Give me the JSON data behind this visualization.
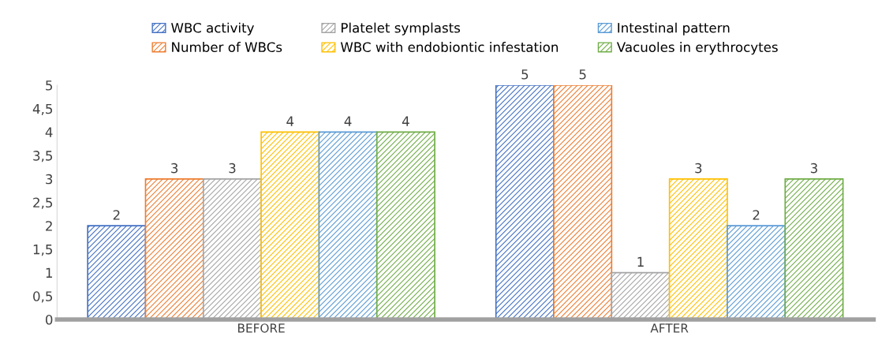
{
  "chart_data": {
    "type": "bar",
    "categories": [
      "BEFORE",
      "AFTER"
    ],
    "series": [
      {
        "name": "WBC activity",
        "color": "#4472c4",
        "values": [
          2,
          5
        ]
      },
      {
        "name": "Number of WBCs",
        "color": "#ed7d31",
        "values": [
          3,
          5
        ]
      },
      {
        "name": "Platelet symplasts",
        "color": "#a5a5a5",
        "values": [
          3,
          1
        ]
      },
      {
        "name": "WBC with endobiontic infestation",
        "color": "#ffc000",
        "values": [
          4,
          3
        ]
      },
      {
        "name": "Intestinal pattern",
        "color": "#5b9bd5",
        "values": [
          4,
          2
        ]
      },
      {
        "name": "Vacuoles in erythrocytes",
        "color": "#70ad47",
        "values": [
          4,
          3
        ]
      }
    ],
    "ylim": [
      0,
      5
    ],
    "yticks": [
      0,
      {
        "value": 0.5,
        "label": "0,5"
      },
      1,
      {
        "value": 1.5,
        "label": "1,5"
      },
      2,
      {
        "value": 2.5,
        "label": "2,5"
      },
      3,
      {
        "value": 3.5,
        "label": "3,5"
      },
      4,
      {
        "value": 4.5,
        "label": "4,5"
      },
      5
    ],
    "data_labels": true,
    "legend": "top",
    "grid": false
  }
}
